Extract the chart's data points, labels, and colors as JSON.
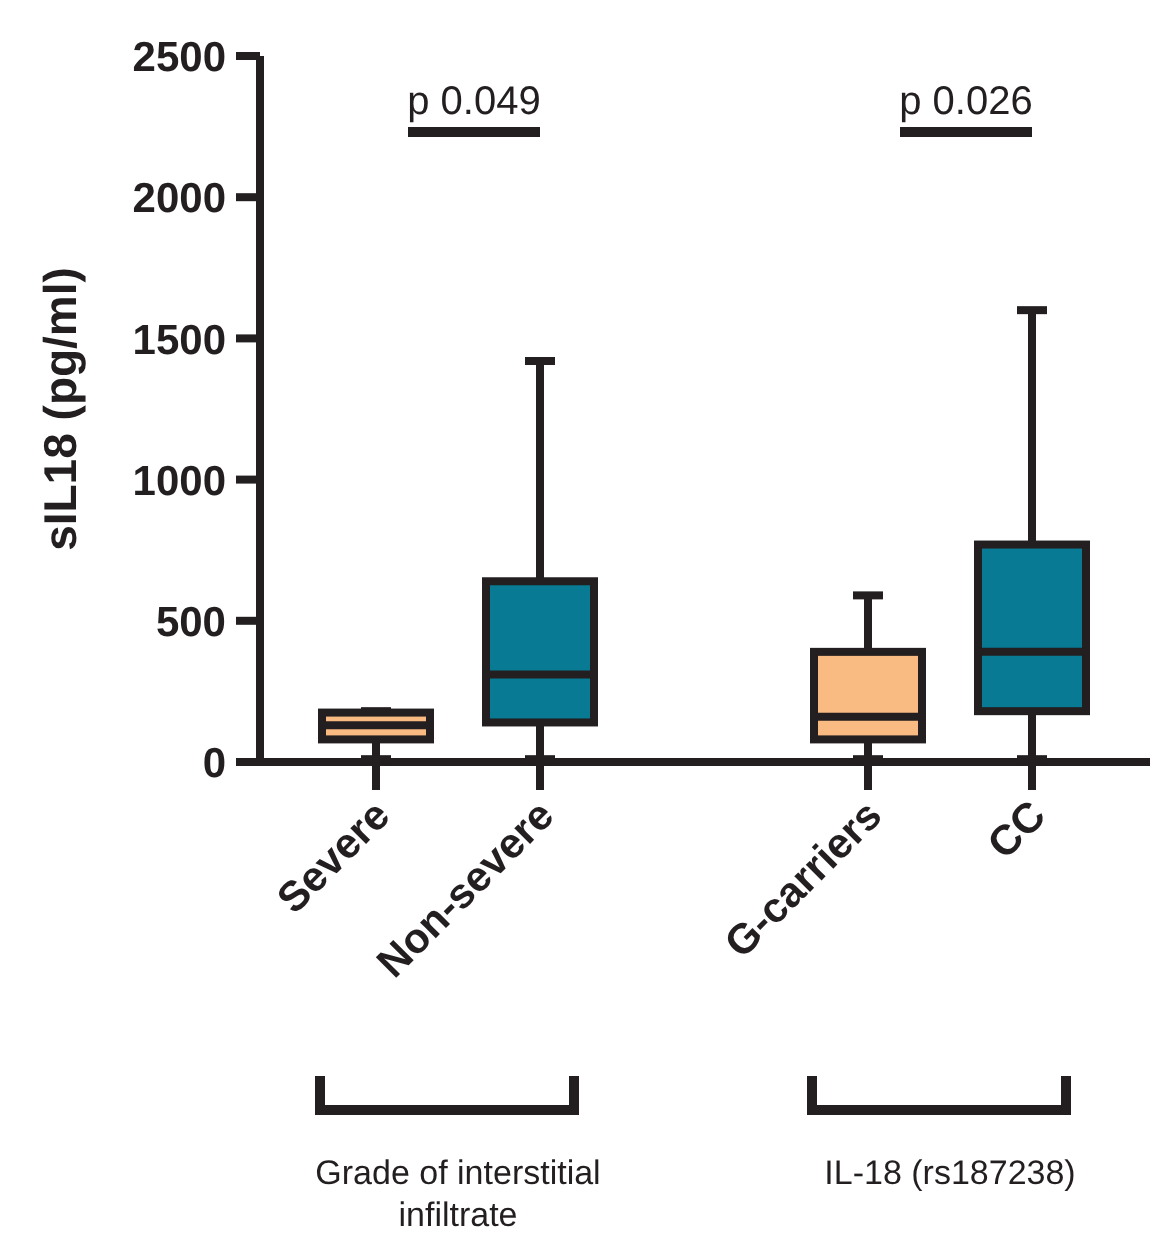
{
  "chart_data": {
    "type": "box",
    "ylabel": "sIL18 (pg/ml)",
    "categories": [
      "Severe",
      "Non-severe",
      null,
      "G-carriers",
      "CC"
    ],
    "colors": [
      "#f9bb82",
      "#087a94",
      null,
      "#f9bb82",
      "#087a94"
    ],
    "boxes": [
      {
        "low": 10,
        "q1": 80,
        "median": 130,
        "q3": 175,
        "high": 180
      },
      {
        "low": 10,
        "q1": 140,
        "median": 310,
        "q3": 640,
        "high": 1420
      },
      null,
      {
        "low": 10,
        "q1": 80,
        "median": 160,
        "q3": 390,
        "high": 590
      },
      {
        "low": 10,
        "q1": 180,
        "median": 390,
        "q3": 770,
        "high": 1600
      }
    ],
    "ylim": [
      0,
      2500
    ],
    "yticks": [
      0,
      500,
      1000,
      1500,
      2000,
      2500
    ],
    "annotations": [
      "p 0.049",
      "p 0.026",
      "Grade of interstitial infiltrate",
      "IL-18 (rs187238)"
    ]
  }
}
